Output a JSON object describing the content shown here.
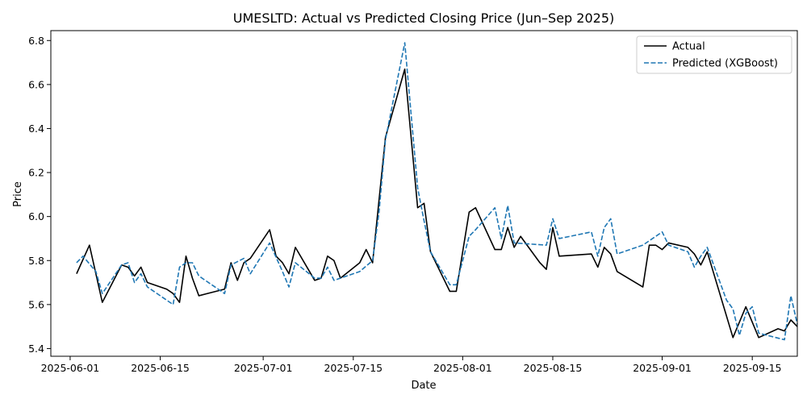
{
  "chart_data": {
    "type": "line",
    "title": "UMESLTD: Actual vs Predicted Closing Price (Jun–Sep 2025)",
    "xlabel": "Date",
    "ylabel": "Price",
    "x_range": [
      "2025-05-29",
      "2025-09-22"
    ],
    "ylim": [
      5.365,
      6.845
    ],
    "x_ticks": [
      "2025-06-01",
      "2025-06-15",
      "2025-07-01",
      "2025-07-15",
      "2025-08-01",
      "2025-08-15",
      "2025-09-01",
      "2025-09-15"
    ],
    "y_ticks": [
      5.4,
      5.6,
      5.8,
      6.0,
      6.2,
      6.4,
      6.6,
      6.8
    ],
    "y_tick_labels": [
      "5.4",
      "5.6",
      "5.8",
      "6.0",
      "6.2",
      "6.4",
      "6.6",
      "6.8"
    ],
    "grid": false,
    "legend_position": "top-right",
    "series": [
      {
        "name": "Actual",
        "color": "#000000",
        "style": "solid",
        "points": [
          [
            "2025-06-02",
            5.74
          ],
          [
            "2025-06-04",
            5.87
          ],
          [
            "2025-06-06",
            5.61
          ],
          [
            "2025-06-09",
            5.78
          ],
          [
            "2025-06-10",
            5.77
          ],
          [
            "2025-06-11",
            5.73
          ],
          [
            "2025-06-12",
            5.77
          ],
          [
            "2025-06-13",
            5.7
          ],
          [
            "2025-06-16",
            5.67
          ],
          [
            "2025-06-17",
            5.65
          ],
          [
            "2025-06-18",
            5.61
          ],
          [
            "2025-06-19",
            5.82
          ],
          [
            "2025-06-20",
            5.72
          ],
          [
            "2025-06-21",
            5.64
          ],
          [
            "2025-06-25",
            5.67
          ],
          [
            "2025-06-26",
            5.79
          ],
          [
            "2025-06-27",
            5.71
          ],
          [
            "2025-06-28",
            5.79
          ],
          [
            "2025-06-29",
            5.81
          ],
          [
            "2025-07-02",
            5.94
          ],
          [
            "2025-07-03",
            5.82
          ],
          [
            "2025-07-04",
            5.79
          ],
          [
            "2025-07-05",
            5.74
          ],
          [
            "2025-07-06",
            5.86
          ],
          [
            "2025-07-09",
            5.71
          ],
          [
            "2025-07-10",
            5.72
          ],
          [
            "2025-07-11",
            5.82
          ],
          [
            "2025-07-12",
            5.8
          ],
          [
            "2025-07-13",
            5.72
          ],
          [
            "2025-07-16",
            5.79
          ],
          [
            "2025-07-17",
            5.85
          ],
          [
            "2025-07-18",
            5.79
          ],
          [
            "2025-07-20",
            6.36
          ],
          [
            "2025-07-23",
            6.67
          ],
          [
            "2025-07-25",
            6.04
          ],
          [
            "2025-07-26",
            6.06
          ],
          [
            "2025-07-27",
            5.84
          ],
          [
            "2025-07-30",
            5.66
          ],
          [
            "2025-07-31",
            5.66
          ],
          [
            "2025-08-02",
            6.02
          ],
          [
            "2025-08-03",
            6.04
          ],
          [
            "2025-08-06",
            5.85
          ],
          [
            "2025-08-07",
            5.85
          ],
          [
            "2025-08-08",
            5.95
          ],
          [
            "2025-08-09",
            5.86
          ],
          [
            "2025-08-10",
            5.91
          ],
          [
            "2025-08-13",
            5.79
          ],
          [
            "2025-08-14",
            5.76
          ],
          [
            "2025-08-15",
            5.95
          ],
          [
            "2025-08-16",
            5.82
          ],
          [
            "2025-08-21",
            5.83
          ],
          [
            "2025-08-22",
            5.77
          ],
          [
            "2025-08-23",
            5.86
          ],
          [
            "2025-08-24",
            5.83
          ],
          [
            "2025-08-25",
            5.75
          ],
          [
            "2025-08-29",
            5.68
          ],
          [
            "2025-08-30",
            5.87
          ],
          [
            "2025-08-31",
            5.87
          ],
          [
            "2025-09-01",
            5.85
          ],
          [
            "2025-09-02",
            5.88
          ],
          [
            "2025-09-05",
            5.86
          ],
          [
            "2025-09-06",
            5.83
          ],
          [
            "2025-09-07",
            5.78
          ],
          [
            "2025-09-08",
            5.84
          ],
          [
            "2025-09-12",
            5.45
          ],
          [
            "2025-09-14",
            5.59
          ],
          [
            "2025-09-16",
            5.45
          ],
          [
            "2025-09-19",
            5.49
          ],
          [
            "2025-09-20",
            5.48
          ],
          [
            "2025-09-21",
            5.53
          ],
          [
            "2025-09-22",
            5.5
          ]
        ]
      },
      {
        "name": "Predicted (XGBoost)",
        "color": "#1f77b4",
        "style": "dashed",
        "points": [
          [
            "2025-06-02",
            5.79
          ],
          [
            "2025-06-03",
            5.82
          ],
          [
            "2025-06-05",
            5.75
          ],
          [
            "2025-06-06",
            5.65
          ],
          [
            "2025-06-09",
            5.78
          ],
          [
            "2025-06-10",
            5.79
          ],
          [
            "2025-06-11",
            5.7
          ],
          [
            "2025-06-12",
            5.74
          ],
          [
            "2025-06-13",
            5.68
          ],
          [
            "2025-06-17",
            5.6
          ],
          [
            "2025-06-18",
            5.77
          ],
          [
            "2025-06-19",
            5.79
          ],
          [
            "2025-06-20",
            5.79
          ],
          [
            "2025-06-21",
            5.73
          ],
          [
            "2025-06-25",
            5.65
          ],
          [
            "2025-06-26",
            5.78
          ],
          [
            "2025-06-28",
            5.81
          ],
          [
            "2025-06-29",
            5.74
          ],
          [
            "2025-07-02",
            5.88
          ],
          [
            "2025-07-04",
            5.75
          ],
          [
            "2025-07-05",
            5.68
          ],
          [
            "2025-07-06",
            5.79
          ],
          [
            "2025-07-09",
            5.72
          ],
          [
            "2025-07-10",
            5.72
          ],
          [
            "2025-07-11",
            5.77
          ],
          [
            "2025-07-12",
            5.71
          ],
          [
            "2025-07-13",
            5.72
          ],
          [
            "2025-07-16",
            5.75
          ],
          [
            "2025-07-18",
            5.8
          ],
          [
            "2025-07-19",
            6.02
          ],
          [
            "2025-07-20",
            6.35
          ],
          [
            "2025-07-23",
            6.79
          ],
          [
            "2025-07-25",
            6.13
          ],
          [
            "2025-07-26",
            5.98
          ],
          [
            "2025-07-27",
            5.84
          ],
          [
            "2025-07-30",
            5.69
          ],
          [
            "2025-07-31",
            5.69
          ],
          [
            "2025-08-02",
            5.91
          ],
          [
            "2025-08-03",
            5.94
          ],
          [
            "2025-08-06",
            6.04
          ],
          [
            "2025-08-07",
            5.9
          ],
          [
            "2025-08-08",
            6.05
          ],
          [
            "2025-08-09",
            5.88
          ],
          [
            "2025-08-14",
            5.87
          ],
          [
            "2025-08-15",
            5.99
          ],
          [
            "2025-08-16",
            5.9
          ],
          [
            "2025-08-21",
            5.93
          ],
          [
            "2025-08-22",
            5.82
          ],
          [
            "2025-08-23",
            5.95
          ],
          [
            "2025-08-24",
            5.99
          ],
          [
            "2025-08-25",
            5.83
          ],
          [
            "2025-08-29",
            5.87
          ],
          [
            "2025-08-30",
            5.89
          ],
          [
            "2025-09-01",
            5.93
          ],
          [
            "2025-09-02",
            5.87
          ],
          [
            "2025-09-05",
            5.84
          ],
          [
            "2025-09-06",
            5.77
          ],
          [
            "2025-09-07",
            5.82
          ],
          [
            "2025-09-08",
            5.86
          ],
          [
            "2025-09-11",
            5.62
          ],
          [
            "2025-09-12",
            5.58
          ],
          [
            "2025-09-13",
            5.46
          ],
          [
            "2025-09-14",
            5.56
          ],
          [
            "2025-09-15",
            5.59
          ],
          [
            "2025-09-16",
            5.47
          ],
          [
            "2025-09-20",
            5.44
          ],
          [
            "2025-09-21",
            5.64
          ],
          [
            "2025-09-22",
            5.51
          ]
        ]
      }
    ]
  }
}
